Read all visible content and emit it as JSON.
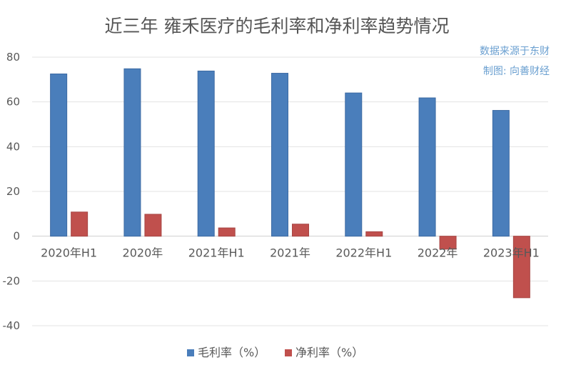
{
  "chart_data": {
    "type": "bar",
    "title": "近三年 雍禾医疗的毛利率和净利率趋势情况",
    "source_note": "数据来源于东财",
    "credit_note": "制图: 向善财经",
    "categories": [
      "2020年H1",
      "2020年",
      "2021年H1",
      "2021年",
      "2022年H1",
      "2022年",
      "2023年H1"
    ],
    "series": [
      {
        "name": "毛利率（%）",
        "color": "#4a7ebb",
        "values": [
          72.5,
          74.8,
          73.8,
          72.8,
          64.0,
          61.8,
          56.2
        ]
      },
      {
        "name": "净利率（%）",
        "color": "#c0504d",
        "values": [
          10.8,
          9.8,
          3.7,
          5.4,
          2.0,
          -5.8,
          -27.5
        ]
      }
    ],
    "ylim": [
      -40,
      80
    ],
    "yticks": [
      80,
      60,
      40,
      20,
      0,
      -20,
      -40
    ],
    "grid": true,
    "legend_position": "bottom"
  }
}
